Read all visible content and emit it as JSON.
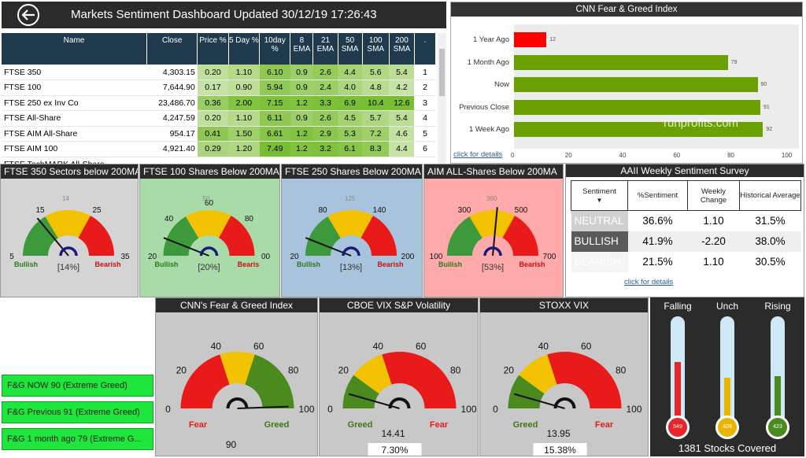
{
  "header": {
    "title": "Markets Sentiment Dashboard Updated  30/12/19 17:26:43"
  },
  "markets": {
    "columns": [
      "Name",
      "Close",
      "Price %",
      "5 Day %",
      "10day %",
      "8 EMA",
      "21 EMA",
      "50 SMA",
      "100 SMA",
      "200 SMA",
      "."
    ],
    "rows": [
      [
        "FTSE 350",
        "4,303.15",
        "0.20",
        "1.10",
        "6.10",
        "0.9",
        "2.6",
        "4.4",
        "5.6",
        "5.4",
        "1"
      ],
      [
        "FTSE 100",
        "7,644.90",
        "0.17",
        "0.90",
        "5.94",
        "0.9",
        "2.4",
        "4.0",
        "4.8",
        "4.2",
        "2"
      ],
      [
        "FTSE 250 ex Inv Co",
        "23,486.70",
        "0.36",
        "2.00",
        "7.15",
        "1.2",
        "3.3",
        "6.9",
        "10.4",
        "12.6",
        "3"
      ],
      [
        "FTSE All-Share",
        "4,247.59",
        "0.20",
        "1.10",
        "6.11",
        "0.9",
        "2.6",
        "4.5",
        "5.7",
        "5.4",
        "4"
      ],
      [
        "FTSE AIM All-Share",
        "954.17",
        "0.41",
        "1.50",
        "6.61",
        "1.2",
        "2.9",
        "5.3",
        "7.2",
        "4.6",
        "5"
      ],
      [
        "FTSE AIM 100",
        "4,921.40",
        "0.29",
        "1.20",
        "7.49",
        "1.2",
        "3.2",
        "6.1",
        "8.3",
        "4.4",
        "6"
      ],
      [
        "FTSE TechMARK All-Share",
        "",
        "",
        "",
        "",
        "",
        "",
        "",
        "",
        "",
        ""
      ]
    ]
  },
  "cnn_bars": {
    "title": "CNN Fear & Greed Index",
    "link": "click for details",
    "watermark": "runprofits.com",
    "chart_data": {
      "type": "bar",
      "orientation": "horizontal",
      "categories": [
        "1 Year Ago",
        "1 Month Ago",
        "Now",
        "Previous Close",
        "1 Week Ago"
      ],
      "values": [
        12,
        79,
        90,
        91,
        92
      ],
      "xlim": [
        0,
        100
      ],
      "xticks": [
        "0",
        "20",
        "40",
        "60",
        "80",
        "100"
      ],
      "colors": [
        "#ff0000",
        "#6aa000",
        "#6aa000",
        "#6aa000",
        "#6aa000"
      ]
    }
  },
  "gauges": [
    {
      "title": "FTSE 350 Sectors below 200MA",
      "bg": "#d4d4d4",
      "ticks": [
        "5",
        "15",
        "25",
        "35"
      ],
      "minor": "14",
      "left": "Bullish",
      "right": "Bearish",
      "pct": "[14%]"
    },
    {
      "title": "FTSE 100  Shares Below 200MA",
      "bg": "#a9dba9",
      "ticks": [
        "20",
        "40",
        "60",
        "80",
        "00"
      ],
      "minor": "50",
      "left": "Bullish",
      "right": "Bearis",
      "pct": "[20%]"
    },
    {
      "title": "FTSE 250 Shares Below 200MA",
      "bg": "#a7c4dc",
      "ticks": [
        "20",
        "80",
        "140",
        "200"
      ],
      "minor": "125",
      "left": "Bullish",
      "right": "Bearish",
      "pct": "[13%]"
    },
    {
      "title": "AIM ALL-Shares Below 200MA",
      "bg": "#ffaaaa",
      "ticks": [
        "100",
        "300",
        "500",
        "700"
      ],
      "minor": "360",
      "left": "Bullish",
      "right": "Bearish",
      "pct": "[53%]"
    }
  ],
  "aaii": {
    "title": "AAII Weekly Sentiment Survey",
    "columns": [
      "Sentiment",
      "%Sentiment",
      "Weekly Change",
      "Historical Average"
    ],
    "rows": [
      {
        "label": "NEUTRAL",
        "pct": "36.6%",
        "chg": "1.10",
        "avg": "31.5%"
      },
      {
        "label": "BULLISH",
        "pct": "41.9%",
        "chg": "-2.20",
        "avg": "38.0%"
      },
      {
        "label": "BEARISH",
        "pct": "21.5%",
        "chg": "1.10",
        "avg": "30.5%"
      }
    ],
    "link": "click for details"
  },
  "fg_boxes": [
    "F&G NOW  90 (Extreme Greed)",
    "F&G Previous  91 (Extreme Greed)",
    "F&G 1 month ago  79 (Extreme G..."
  ],
  "big_gauges": [
    {
      "title": "CNN's Fear & Greed Index",
      "ticks": [
        "0",
        "20",
        "40",
        "60",
        "80",
        "100"
      ],
      "left": "Fear",
      "right": "Greed",
      "value": "90",
      "box": ""
    },
    {
      "title": "CBOE VIX S&P Volatility",
      "ticks": [
        "0",
        "20",
        "40",
        "60",
        "80",
        "100"
      ],
      "left": "Greed",
      "right": "Fear",
      "value": "14.41",
      "box": "7.30%"
    },
    {
      "title": "STOXX VIX",
      "ticks": [
        "0",
        "20",
        "40",
        "60",
        "80",
        "100"
      ],
      "left": "Greed",
      "right": "Fear",
      "value": "13.95",
      "box": "15.38%"
    }
  ],
  "breadth": {
    "labels": [
      "Falling",
      "Unch",
      "Rising"
    ],
    "values": [
      "549",
      "409",
      "423"
    ],
    "footer": "1381  Stocks Covered"
  }
}
